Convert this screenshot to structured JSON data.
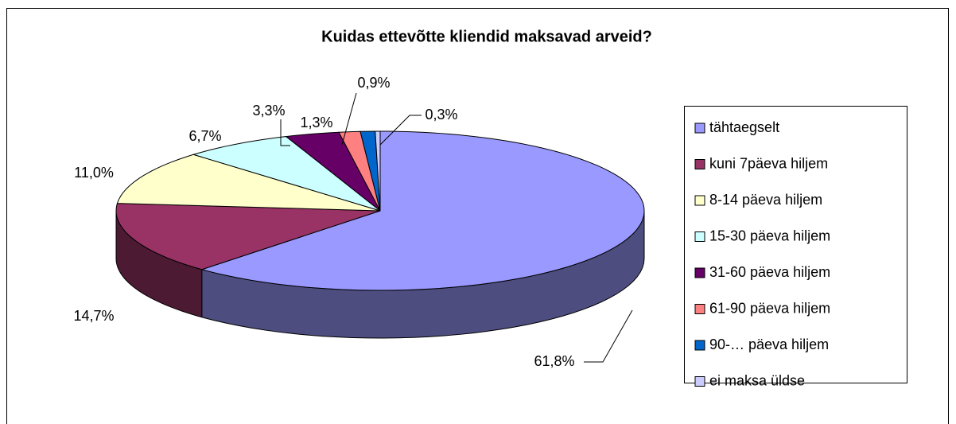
{
  "chart_data": {
    "type": "pie3d",
    "title": "Kuidas ettevõtte kliendid maksavad arveid?",
    "categories": [
      "tähtaegselt",
      "kuni 7päeva hiljem",
      "8-14 päeva hiljem",
      "15-30 päeva hiljem",
      "31-60 päeva hiljem",
      "61-90 päeva hiljem",
      "90-… päeva hiljem",
      "ei maksa üldse"
    ],
    "values": [
      61.8,
      14.7,
      11.0,
      6.7,
      3.3,
      1.3,
      0.9,
      0.3
    ],
    "value_labels": [
      "61,8%",
      "14,7%",
      "11,0%",
      "6,7%",
      "3,3%",
      "1,3%",
      "0,9%",
      "0,3%"
    ],
    "colors": [
      "#9999ff",
      "#993366",
      "#ffffcc",
      "#ccffff",
      "#660066",
      "#ff8080",
      "#0066cc",
      "#ccccff"
    ],
    "legend": "right"
  }
}
